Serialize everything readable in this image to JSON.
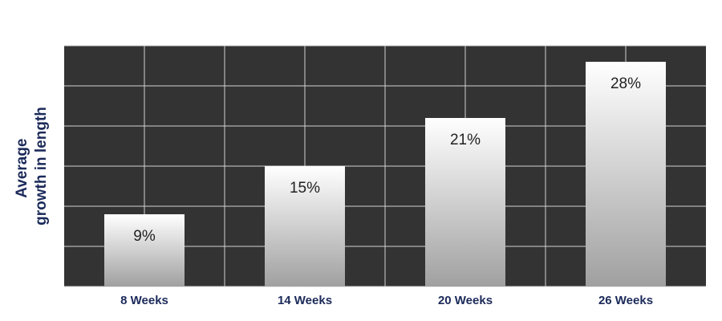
{
  "chart_data": {
    "type": "bar",
    "y_label": [
      "Average",
      "growth in length"
    ],
    "categories": [
      "8 Weeks",
      "14 Weeks",
      "20 Weeks",
      "26 Weeks"
    ],
    "values": [
      9,
      15,
      21,
      28
    ],
    "value_labels": [
      "9%",
      "15%",
      "21%",
      "28%"
    ],
    "ylim": [
      0,
      30
    ],
    "yticks": [
      0,
      5,
      10,
      15,
      20,
      25,
      30
    ],
    "grid": true,
    "background": "#333333",
    "bar_gradient": [
      "#ffffff",
      "#a0a0a0"
    ]
  }
}
